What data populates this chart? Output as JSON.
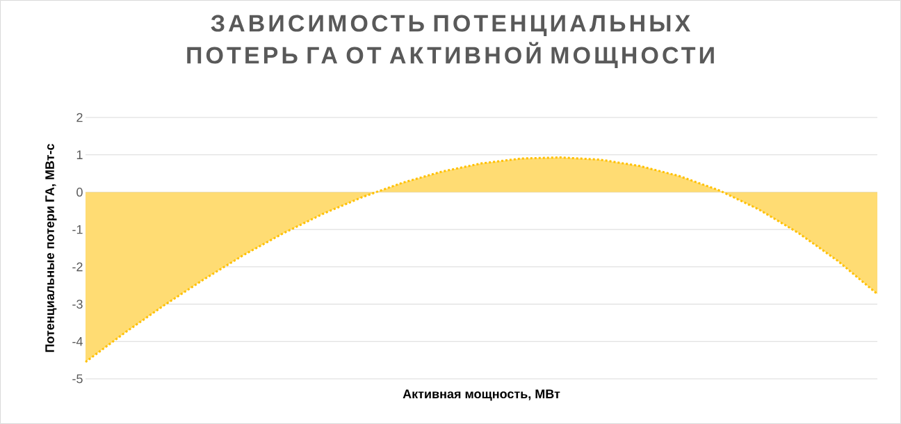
{
  "chart_data": {
    "type": "area",
    "title": "ЗАВИСИМОСТЬ ПОТЕНЦИАЛЬНЫХ ПОТЕРЬ ГА ОТ АКТИВНОЙ МОЩНОСТИ",
    "xlabel": "Активная мощность, МВт",
    "ylabel": "Потенциальные потери ГА, МВт-с",
    "categories": [
      null,
      null,
      null,
      null,
      null,
      null,
      null,
      null,
      null,
      null,
      null,
      null,
      null,
      null,
      null,
      null,
      null,
      null,
      null,
      null,
      null
    ],
    "series": [
      {
        "color": "#ffc000",
        "values": [
          -4.55,
          -3.76,
          -3.02,
          -2.33,
          -1.68,
          -1.1,
          -0.58,
          -0.13,
          0.25,
          0.55,
          0.77,
          0.9,
          0.93,
          0.87,
          0.7,
          0.43,
          0.05,
          -0.46,
          -1.09,
          -1.84,
          -2.73
        ]
      }
    ],
    "ylim": [
      -5,
      2
    ],
    "yticks": [
      -5,
      -4,
      -3,
      -2,
      -1,
      0,
      1,
      2
    ],
    "grid": "y",
    "line_style": "dashed",
    "tick_labels": "y"
  }
}
